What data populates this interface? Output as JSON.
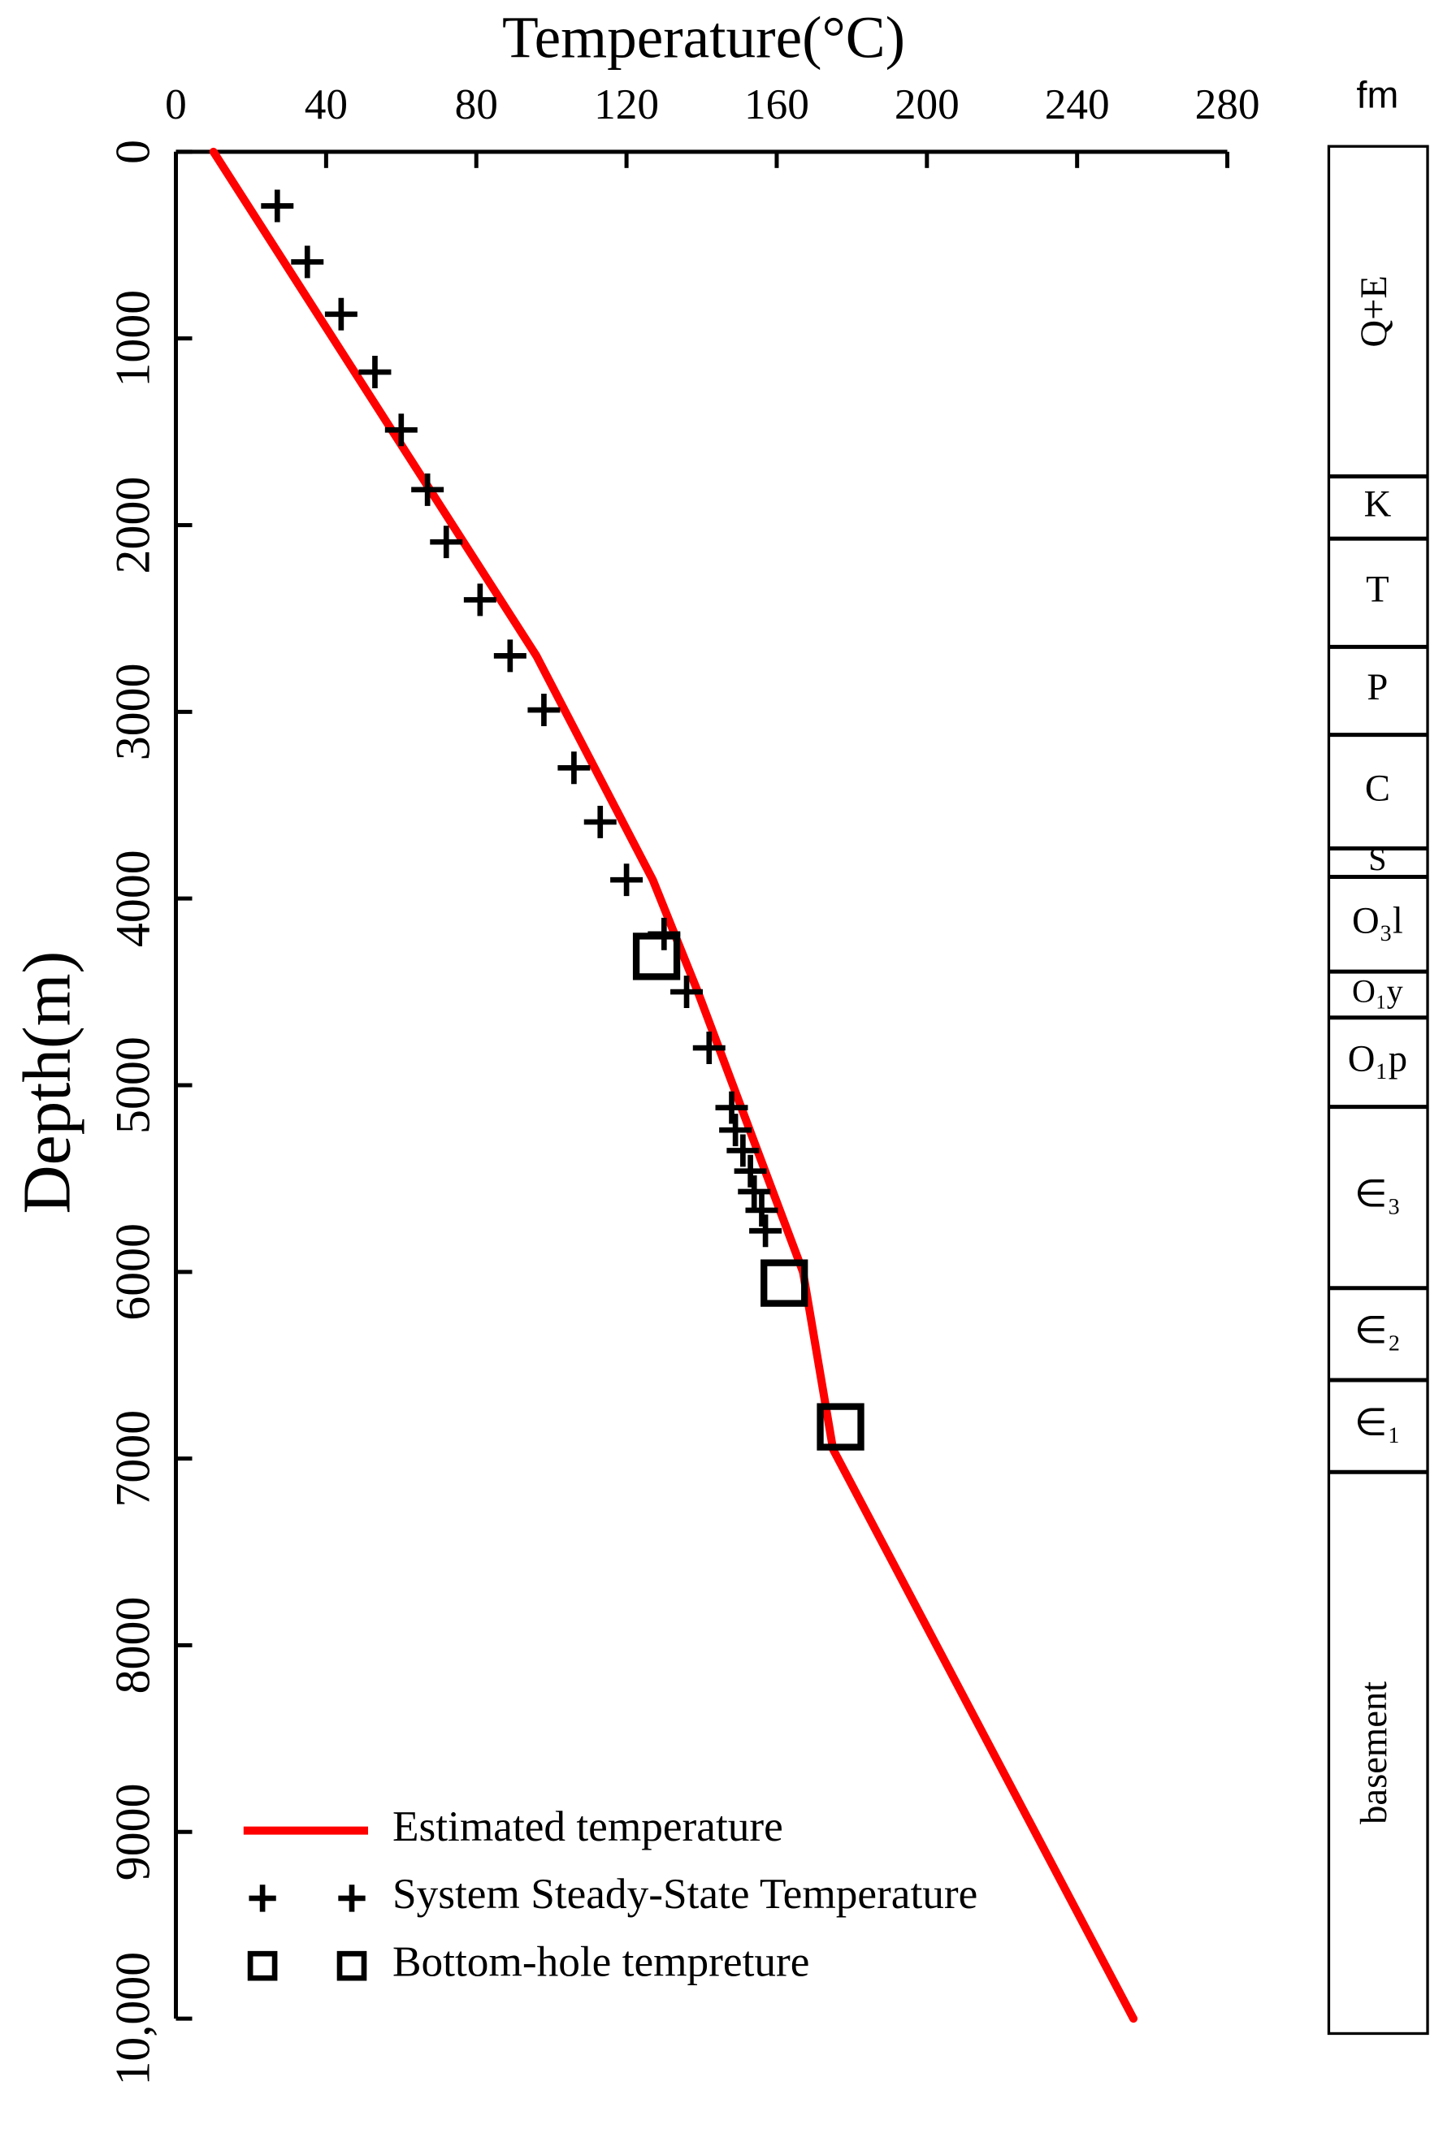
{
  "chart_data": {
    "type": "line",
    "title": "Temperature(°C)",
    "ylabel": "Depth(m)",
    "xlim": [
      0,
      280
    ],
    "xticks": [
      0,
      40,
      80,
      120,
      160,
      200,
      240,
      280
    ],
    "ylim": [
      0,
      10000
    ],
    "y_inverted": true,
    "yticks": [
      0,
      1000,
      2000,
      3000,
      4000,
      5000,
      6000,
      7000,
      8000,
      9000,
      {
        "value": 10000,
        "label": "10,000"
      }
    ],
    "legend": "lower left",
    "series": [
      {
        "name": "Estimated temperature",
        "type": "line",
        "color": "#ff0000",
        "x": [
          10,
          96,
          127,
          139,
          167,
          175,
          255
        ],
        "values": [
          0,
          2700,
          3900,
          4500,
          6000,
          6950,
          10000
        ]
      },
      {
        "name": "System Steady-State Temperature",
        "type": "plus",
        "color": "#000000",
        "x": [
          27,
          35,
          44,
          53,
          60,
          67,
          72,
          81,
          89,
          98,
          106,
          113,
          120,
          130,
          136,
          142,
          148,
          149,
          151,
          153,
          154,
          156,
          157
        ],
        "values": [
          290,
          590,
          870,
          1180,
          1490,
          1810,
          2090,
          2400,
          2700,
          2990,
          3300,
          3590,
          3900,
          4190,
          4500,
          4800,
          5120,
          5240,
          5350,
          5460,
          5570,
          5670,
          5780
        ]
      },
      {
        "name": "Bottom-hole tempreture",
        "type": "square",
        "color": "#000000",
        "x": [
          128,
          162,
          177
        ],
        "values": [
          4310,
          6060,
          6830
        ]
      }
    ],
    "formation_header": "fm",
    "formations": [
      "Q+E",
      "K",
      "T",
      "P",
      "C",
      "S",
      "O₃l",
      "O₁y",
      "O₁p",
      "∈₃",
      "∈₂",
      "∈₁",
      "basement"
    ]
  }
}
